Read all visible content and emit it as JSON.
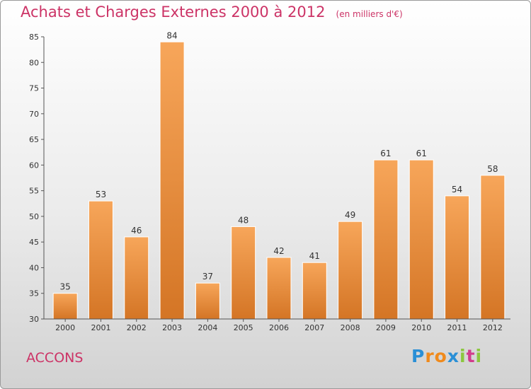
{
  "title": "Achats et Charges Externes 2000 à 2012",
  "subtitle": "(en milliers d'€)",
  "place": "ACCONS",
  "logo": {
    "text": "Proxiti",
    "letters": [
      "P",
      "r",
      "o",
      "x",
      "i",
      "t",
      "i"
    ],
    "colors": [
      "#2a8fd6",
      "#f08a1c",
      "#f08a1c",
      "#2a8fd6",
      "#8cc63f",
      "#d23c8c",
      "#8cc63f"
    ]
  },
  "colors": {
    "accent": "#cc3366",
    "bar_light": "#f7a65a",
    "bar_dark": "#d47525",
    "axis": "#555555"
  },
  "chart_data": {
    "type": "bar",
    "categories": [
      "2000",
      "2001",
      "2002",
      "2003",
      "2004",
      "2005",
      "2006",
      "2007",
      "2008",
      "2009",
      "2010",
      "2011",
      "2012"
    ],
    "values": [
      35,
      53,
      46,
      84,
      37,
      48,
      42,
      41,
      49,
      61,
      61,
      54,
      58
    ],
    "ylim": [
      30,
      85
    ],
    "yticks": [
      30,
      35,
      40,
      45,
      50,
      55,
      60,
      65,
      70,
      75,
      80,
      85
    ],
    "grid": false
  }
}
